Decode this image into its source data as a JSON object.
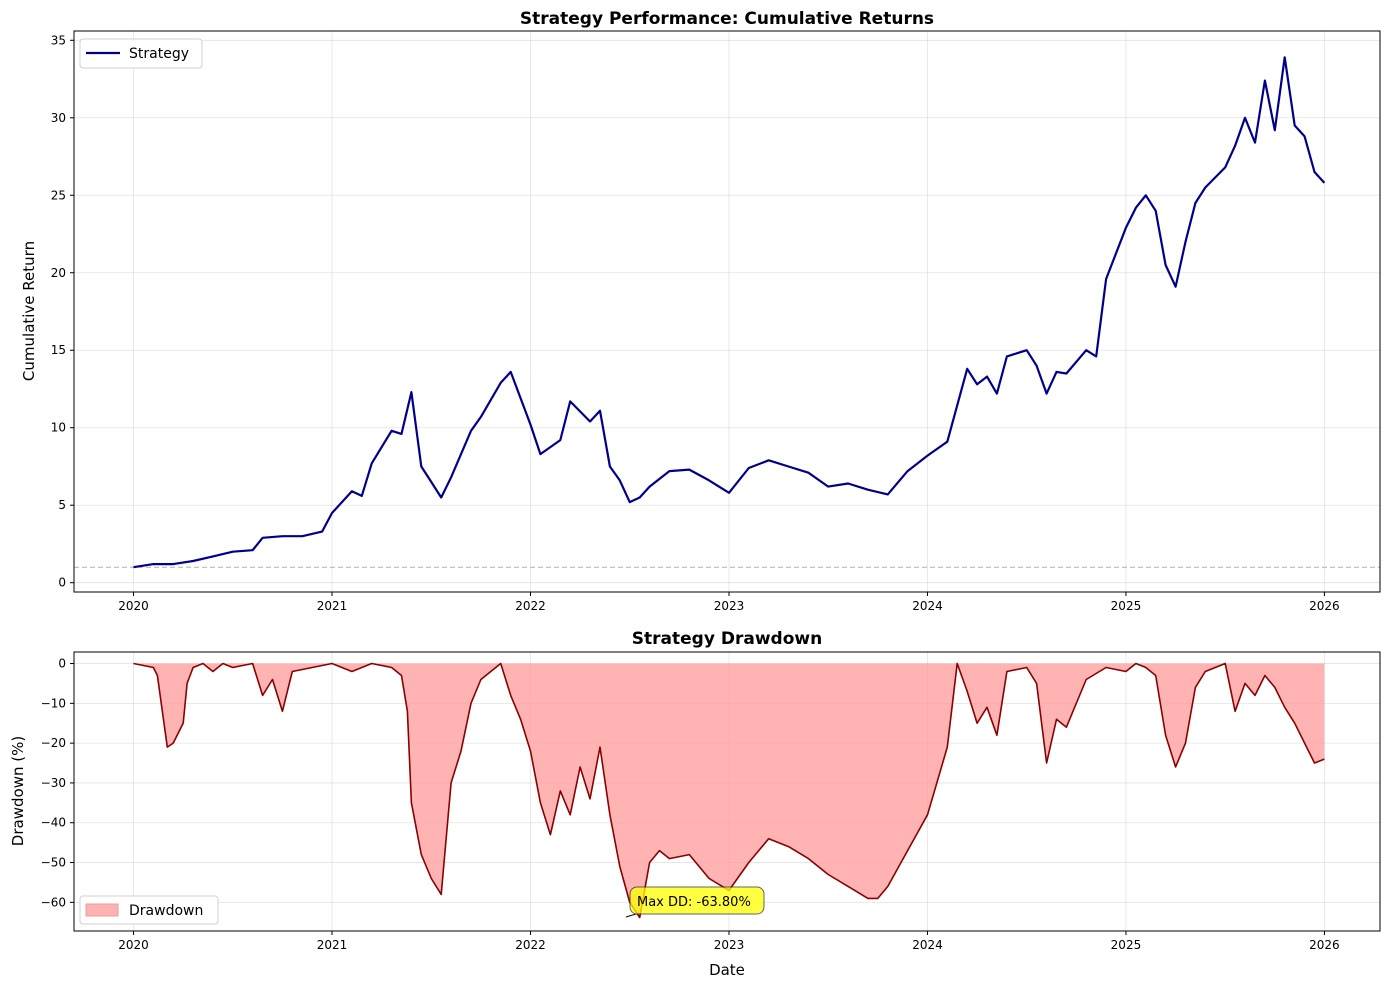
{
  "chart_data": [
    {
      "id": "top",
      "type": "line",
      "title": "Strategy Performance: Cumulative Returns",
      "xlabel": "",
      "ylabel": "Cumulative Return",
      "xlim": [
        2019.7,
        2026.28
      ],
      "ylim": [
        -0.6,
        35.6
      ],
      "x_ticks": [
        2020,
        2021,
        2022,
        2023,
        2024,
        2025,
        2026
      ],
      "x_tick_labels": [
        "2020",
        "2021",
        "2022",
        "2023",
        "2024",
        "2025",
        "2026"
      ],
      "y_ticks": [
        0,
        5,
        10,
        15,
        20,
        25,
        30,
        35
      ],
      "y_tick_labels": [
        "0",
        "5",
        "10",
        "15",
        "20",
        "25",
        "30",
        "35"
      ],
      "grid": true,
      "legend_position": "upper-left",
      "reference_line": {
        "y": 1,
        "style": "dashed",
        "color": "#b0b0b0"
      },
      "series": [
        {
          "name": "Strategy",
          "color": "#00008b",
          "x": [
            2020.0,
            2020.1,
            2020.2,
            2020.3,
            2020.4,
            2020.5,
            2020.6,
            2020.65,
            2020.75,
            2020.85,
            2020.95,
            2021.0,
            2021.1,
            2021.15,
            2021.2,
            2021.3,
            2021.35,
            2021.4,
            2021.45,
            2021.5,
            2021.55,
            2021.6,
            2021.7,
            2021.75,
            2021.85,
            2021.9,
            2022.0,
            2022.05,
            2022.15,
            2022.2,
            2022.3,
            2022.35,
            2022.4,
            2022.45,
            2022.5,
            2022.55,
            2022.6,
            2022.7,
            2022.8,
            2022.9,
            2023.0,
            2023.1,
            2023.2,
            2023.3,
            2023.4,
            2023.5,
            2023.6,
            2023.7,
            2023.8,
            2023.9,
            2024.0,
            2024.1,
            2024.2,
            2024.25,
            2024.3,
            2024.35,
            2024.4,
            2024.5,
            2024.55,
            2024.6,
            2024.65,
            2024.7,
            2024.8,
            2024.85,
            2024.9,
            2025.0,
            2025.05,
            2025.1,
            2025.15,
            2025.2,
            2025.25,
            2025.3,
            2025.35,
            2025.4,
            2025.5,
            2025.55,
            2025.6,
            2025.65,
            2025.7,
            2025.75,
            2025.8,
            2025.85,
            2025.9,
            2025.95,
            2026.0
          ],
          "values": [
            1.0,
            1.2,
            1.2,
            1.4,
            1.7,
            2.0,
            2.1,
            2.9,
            3.0,
            3.0,
            3.3,
            4.5,
            5.9,
            5.6,
            7.7,
            9.8,
            9.6,
            12.3,
            7.5,
            6.5,
            5.5,
            6.8,
            9.8,
            10.7,
            12.9,
            13.6,
            10.2,
            8.3,
            9.2,
            11.7,
            10.4,
            11.1,
            7.5,
            6.6,
            5.2,
            5.5,
            6.2,
            7.2,
            7.3,
            6.6,
            5.8,
            7.4,
            7.9,
            7.5,
            7.1,
            6.2,
            6.4,
            6.0,
            5.7,
            7.2,
            8.2,
            9.1,
            13.8,
            12.8,
            13.3,
            12.2,
            14.6,
            15.0,
            14.0,
            12.2,
            13.6,
            13.5,
            15.0,
            14.6,
            19.6,
            22.9,
            24.2,
            25.0,
            24.0,
            20.5,
            19.1,
            22.0,
            24.5,
            25.5,
            26.8,
            28.2,
            30.0,
            28.4,
            32.4,
            29.2,
            33.9,
            29.5,
            28.8,
            26.5,
            25.8
          ]
        }
      ]
    },
    {
      "id": "bottom",
      "type": "area",
      "title": "Strategy Drawdown",
      "xlabel": "Date",
      "ylabel": "Drawdown (%)",
      "xlim": [
        2019.7,
        2026.28
      ],
      "ylim": [
        -67.2,
        2.9
      ],
      "x_ticks": [
        2020,
        2021,
        2022,
        2023,
        2024,
        2025,
        2026
      ],
      "x_tick_labels": [
        "2020",
        "2021",
        "2022",
        "2023",
        "2024",
        "2025",
        "2026"
      ],
      "y_ticks": [
        0,
        -10,
        -20,
        -30,
        -40,
        -50,
        -60
      ],
      "y_tick_labels": [
        "0",
        "−10",
        "−20",
        "−30",
        "−40",
        "−50",
        "−60"
      ],
      "grid": true,
      "legend_position": "lower-left",
      "series": [
        {
          "name": "Drawdown",
          "line_color": "#8b0000",
          "fill_color": "#ff9999",
          "x": [
            2020.0,
            2020.1,
            2020.12,
            2020.17,
            2020.2,
            2020.25,
            2020.27,
            2020.3,
            2020.35,
            2020.4,
            2020.45,
            2020.5,
            2020.6,
            2020.65,
            2020.7,
            2020.75,
            2020.8,
            2020.9,
            2021.0,
            2021.1,
            2021.2,
            2021.3,
            2021.35,
            2021.38,
            2021.4,
            2021.45,
            2021.5,
            2021.55,
            2021.6,
            2021.65,
            2021.7,
            2021.75,
            2021.8,
            2021.85,
            2021.9,
            2021.95,
            2022.0,
            2022.05,
            2022.1,
            2022.15,
            2022.2,
            2022.25,
            2022.3,
            2022.35,
            2022.4,
            2022.45,
            2022.5,
            2022.55,
            2022.6,
            2022.65,
            2022.7,
            2022.8,
            2022.9,
            2023.0,
            2023.1,
            2023.2,
            2023.3,
            2023.4,
            2023.5,
            2023.6,
            2023.7,
            2023.75,
            2023.8,
            2023.9,
            2024.0,
            2024.1,
            2024.15,
            2024.2,
            2024.25,
            2024.3,
            2024.35,
            2024.4,
            2024.5,
            2024.55,
            2024.6,
            2024.65,
            2024.7,
            2024.8,
            2024.9,
            2025.0,
            2025.05,
            2025.1,
            2025.15,
            2025.2,
            2025.25,
            2025.3,
            2025.35,
            2025.4,
            2025.5,
            2025.55,
            2025.6,
            2025.65,
            2025.7,
            2025.75,
            2025.8,
            2025.85,
            2025.9,
            2025.95,
            2026.0
          ],
          "values": [
            0,
            -1,
            -3,
            -21,
            -20,
            -15,
            -5,
            -1,
            0,
            -2,
            0,
            -1,
            0,
            -8,
            -4,
            -12,
            -2,
            -1,
            0,
            -2,
            0,
            -1,
            -3,
            -12,
            -35,
            -48,
            -54,
            -58,
            -30,
            -22,
            -10,
            -4,
            -2,
            0,
            -8,
            -14,
            -22,
            -35,
            -43,
            -32,
            -38,
            -26,
            -34,
            -21,
            -38,
            -51,
            -60,
            -63.8,
            -50,
            -47,
            -49,
            -48,
            -54,
            -57,
            -50,
            -44,
            -46,
            -49,
            -53,
            -56,
            -59,
            -59,
            -56,
            -47,
            -38,
            -21,
            0,
            -7,
            -15,
            -11,
            -18,
            -2,
            -1,
            -5,
            -25,
            -14,
            -16,
            -4,
            -1,
            -2,
            0,
            -1,
            -3,
            -18,
            -26,
            -20,
            -6,
            -2,
            0,
            -12,
            -5,
            -8,
            -3,
            -6,
            -11,
            -15,
            -20,
            -25,
            -24
          ]
        }
      ],
      "annotation": {
        "text": "Max DD: -63.80%",
        "x": 2022.5,
        "y": -63.8,
        "box_color": "#ffff00"
      }
    }
  ]
}
